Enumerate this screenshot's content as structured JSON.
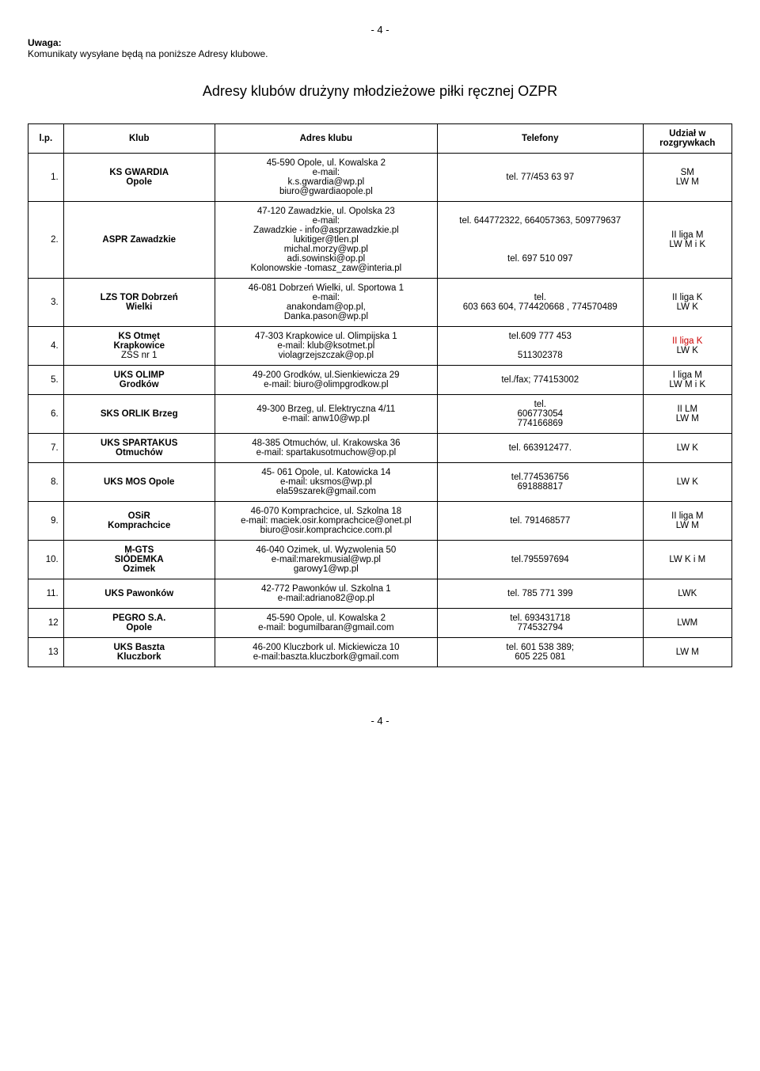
{
  "page_number_top": "- 4 -",
  "note": {
    "title": "Uwaga:",
    "text": "Komunikaty wysyłane będą na poniższe Adresy klubowe."
  },
  "title": "Adresy klubów drużyny młodzieżowe piłki ręcznej OZPR",
  "columns": {
    "lp": "l.p.",
    "klub": "Klub",
    "adres": "Adres klubu",
    "tel": "Telefony",
    "udzial": "Udział w\nrozgrywkach"
  },
  "rows": [
    {
      "lp": "1.",
      "klub_html": "<span class=\"bold\">KS GWARDIA<br>Opole</span>",
      "adres_html": "45-590 Opole, ul. Kowalska 2<br>e-mail:<br>k.s.gwardia@wp.pl<br>biuro@gwardiaopole.pl",
      "tel_html": "tel. 77/453 63 97",
      "udzial_html": "SM<br>LW  M"
    },
    {
      "lp": "2.",
      "klub_html": "<span class=\"bold\">ASPR Zawadzkie</span>",
      "adres_html": "47-120 Zawadzkie, ul. Opolska 23<br>e-mail:<br>Zawadzkie -  info@asprzawadzkie.pl<br>lukitiger@tlen.pl<br>michal.morzy@wp.pl<br>adi.sowinski@op.pl<br>Kolonowskie -tomasz_zaw@interia.pl",
      "tel_html": "tel. 644772322, 664057363, 509779637<br><br><br><br>tel. 697 510 097",
      "udzial_html": "II liga M<br>LW  M i K"
    },
    {
      "lp": "3.",
      "klub_html": "<span class=\"bold\">LZS TOR Dobrzeń<br>Wielki</span>",
      "adres_html": "46-081 Dobrzeń Wielki, ul. Sportowa 1<br>e-mail:<br>anakondam@op.pl,<br>Danka.pason@wp.pl",
      "tel_html": "tel.<br>603 663 604,  774420668 ,  774570489",
      "udzial_html": "II liga K<br>LW  K"
    },
    {
      "lp": "4.",
      "klub_html": "<span class=\"bold\">KS Otmęt<br>Krapkowice<br></span>ZSS nr 1",
      "adres_html": "47-303 Krapkowice ul. Olimpijska 1<br>e-mail: klub@ksotmet.pl<br>violagrzejszczak@op.pl",
      "tel_html": "tel.609 777 453<br><br>511302378",
      "udzial_html": "<span class=\"red\">II liga K</span><br>LW K"
    },
    {
      "lp": "5.",
      "klub_html": "<span class=\"bold\">UKS OLIMP<br>Grodków</span>",
      "adres_html": "49-200 Grodków, ul.Sienkiewicza 29<br>e-mail: biuro@olimpgrodkow.pl",
      "tel_html": "tel./fax; 774153002",
      "udzial_html": "I liga M<br>LW  M i K"
    },
    {
      "lp": "6.",
      "klub_html": "<span class=\"bold\">SKS ORLIK Brzeg</span>",
      "adres_html": "49-300 Brzeg, ul. Elektryczna 4/11<br>e-mail: anw10@wp.pl",
      "tel_html": "tel.<br>606773054<br>774166869",
      "udzial_html": "II LM<br>LW  M"
    },
    {
      "lp": "7.",
      "klub_html": "<span class=\"bold\">UKS SPARTAKUS<br>Otmuchów</span>",
      "adres_html": "48-385 Otmuchów, ul. Krakowska 36<br>e-mail: spartakusotmuchow@op.pl",
      "tel_html": "tel. 663912477.",
      "udzial_html": "LW K"
    },
    {
      "lp": "8.",
      "klub_html": "<span class=\"bold\">UKS MOS Opole</span>",
      "adres_html": "45- 061 Opole, ul. Katowicka 14<br>e-mail: uksmos@wp.pl<br>ela59szarek@gmail.com",
      "tel_html": "tel.774536756<br>691888817",
      "udzial_html": "LW  K"
    },
    {
      "lp": "9.",
      "klub_html": "<span class=\"bold\">OSiR<br>Komprachcice</span>",
      "adres_html": "46-070 Komprachcice, ul. Szkolna 18<br>e-mail: maciek.osir.komprachcice@onet.pl<br>biuro@osir.komprachcice.com.pl",
      "tel_html": "tel. 791468577",
      "udzial_html": "II liga M<br>LW M"
    },
    {
      "lp": "10.",
      "klub_html": "<span class=\"bold\">M-GTS<br>SIÓDEMKA<br>Ozimek</span>",
      "adres_html": "46-040 Ozimek, ul. Wyzwolenia 50<br>e-mail:marekmusial@wp.pl<br>garowy1@wp.pl",
      "tel_html": "tel.795597694",
      "udzial_html": "LW  K i M"
    },
    {
      "lp": "11.",
      "klub_html": "<span class=\"bold\">UKS Pawonków</span>",
      "adres_html": "42-772 Pawonków ul. Szkolna 1<br>e-mail:adriano82@op.pl",
      "tel_html": "tel. 785 771 399",
      "udzial_html": "LWK"
    },
    {
      "lp": "12",
      "klub_html": "<span class=\"bold\">PEGRO S.A.<br>Opole</span>",
      "adres_html": "45-590 Opole, ul. Kowalska 2<br>e-mail: bogumilbaran@gmail.com",
      "tel_html": "tel. 693431718<br>774532794",
      "udzial_html": "LWM"
    },
    {
      "lp": "13",
      "klub_html": "<span class=\"bold\">UKS Baszta<br>Kluczbork</span>",
      "adres_html": "46-200 Kluczbork ul. Mickiewicza 10<br>e-mail:baszta.kluczbork@gmail.com",
      "tel_html": "tel. 601 538 389;<br>605 225 081",
      "udzial_html": "LW  M"
    }
  ],
  "page_number_bottom": "- 4 -"
}
